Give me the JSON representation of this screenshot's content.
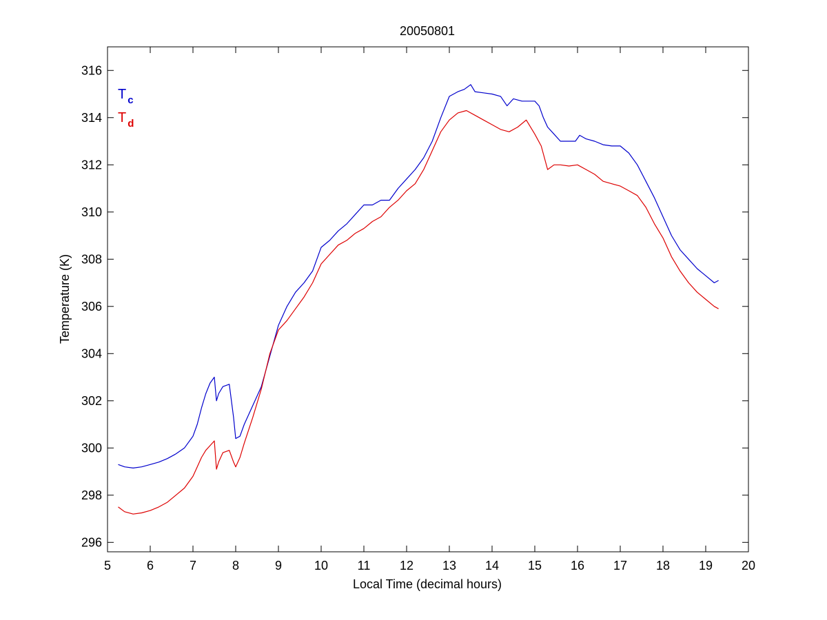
{
  "chart_data": {
    "type": "line",
    "title": "20050801",
    "xlabel": "Local Time (decimal hours)",
    "ylabel": "Temperature (K)",
    "xlim": [
      5,
      20
    ],
    "ylim": [
      295.6,
      317
    ],
    "xticks": [
      5,
      6,
      7,
      8,
      9,
      10,
      11,
      12,
      13,
      14,
      15,
      16,
      17,
      18,
      19,
      20
    ],
    "yticks": [
      296,
      298,
      300,
      302,
      304,
      306,
      308,
      310,
      312,
      314,
      316
    ],
    "grid": false,
    "legend_position": "top-left",
    "series": [
      {
        "name": "Tc",
        "label_main": "T",
        "label_sub": "c",
        "color": "#0000cc",
        "points": [
          [
            5.25,
            299.3
          ],
          [
            5.4,
            299.2
          ],
          [
            5.6,
            299.15
          ],
          [
            5.8,
            299.2
          ],
          [
            6.0,
            299.3
          ],
          [
            6.2,
            299.4
          ],
          [
            6.4,
            299.55
          ],
          [
            6.6,
            299.75
          ],
          [
            6.8,
            300.0
          ],
          [
            7.0,
            300.5
          ],
          [
            7.1,
            301.0
          ],
          [
            7.2,
            301.7
          ],
          [
            7.3,
            302.3
          ],
          [
            7.4,
            302.75
          ],
          [
            7.5,
            303.0
          ],
          [
            7.55,
            302.0
          ],
          [
            7.6,
            302.3
          ],
          [
            7.7,
            302.6
          ],
          [
            7.85,
            302.7
          ],
          [
            7.95,
            301.3
          ],
          [
            8.0,
            300.4
          ],
          [
            8.1,
            300.5
          ],
          [
            8.2,
            301.0
          ],
          [
            8.4,
            301.8
          ],
          [
            8.6,
            302.6
          ],
          [
            8.8,
            303.9
          ],
          [
            9.0,
            305.2
          ],
          [
            9.2,
            306.0
          ],
          [
            9.4,
            306.6
          ],
          [
            9.6,
            307.0
          ],
          [
            9.8,
            307.5
          ],
          [
            10.0,
            308.5
          ],
          [
            10.2,
            308.8
          ],
          [
            10.4,
            309.2
          ],
          [
            10.6,
            309.5
          ],
          [
            10.8,
            309.9
          ],
          [
            11.0,
            310.3
          ],
          [
            11.2,
            310.3
          ],
          [
            11.4,
            310.5
          ],
          [
            11.6,
            310.5
          ],
          [
            11.8,
            311.0
          ],
          [
            12.0,
            311.4
          ],
          [
            12.2,
            311.8
          ],
          [
            12.4,
            312.3
          ],
          [
            12.6,
            313.0
          ],
          [
            12.8,
            314.0
          ],
          [
            13.0,
            314.9
          ],
          [
            13.2,
            315.1
          ],
          [
            13.35,
            315.2
          ],
          [
            13.5,
            315.4
          ],
          [
            13.6,
            315.1
          ],
          [
            13.8,
            315.05
          ],
          [
            14.0,
            315.0
          ],
          [
            14.2,
            314.9
          ],
          [
            14.35,
            314.5
          ],
          [
            14.5,
            314.8
          ],
          [
            14.7,
            314.7
          ],
          [
            14.9,
            314.7
          ],
          [
            15.0,
            314.7
          ],
          [
            15.1,
            314.5
          ],
          [
            15.2,
            314.0
          ],
          [
            15.3,
            313.6
          ],
          [
            15.45,
            313.3
          ],
          [
            15.6,
            313.0
          ],
          [
            15.8,
            313.0
          ],
          [
            15.95,
            313.0
          ],
          [
            16.05,
            313.25
          ],
          [
            16.2,
            313.1
          ],
          [
            16.4,
            313.0
          ],
          [
            16.6,
            312.85
          ],
          [
            16.8,
            312.8
          ],
          [
            17.0,
            312.8
          ],
          [
            17.2,
            312.5
          ],
          [
            17.4,
            312.0
          ],
          [
            17.6,
            311.3
          ],
          [
            17.8,
            310.6
          ],
          [
            18.0,
            309.8
          ],
          [
            18.2,
            309.0
          ],
          [
            18.4,
            308.4
          ],
          [
            18.6,
            308.0
          ],
          [
            18.8,
            307.6
          ],
          [
            19.0,
            307.3
          ],
          [
            19.2,
            307.0
          ],
          [
            19.3,
            307.1
          ]
        ]
      },
      {
        "name": "Td",
        "label_main": "T",
        "label_sub": "d",
        "color": "#dd0000",
        "points": [
          [
            5.25,
            297.5
          ],
          [
            5.4,
            297.3
          ],
          [
            5.6,
            297.2
          ],
          [
            5.8,
            297.25
          ],
          [
            6.0,
            297.35
          ],
          [
            6.2,
            297.5
          ],
          [
            6.4,
            297.7
          ],
          [
            6.6,
            298.0
          ],
          [
            6.8,
            298.3
          ],
          [
            7.0,
            298.8
          ],
          [
            7.1,
            299.2
          ],
          [
            7.2,
            299.6
          ],
          [
            7.3,
            299.9
          ],
          [
            7.4,
            300.1
          ],
          [
            7.5,
            300.3
          ],
          [
            7.55,
            299.1
          ],
          [
            7.6,
            299.4
          ],
          [
            7.7,
            299.8
          ],
          [
            7.85,
            299.9
          ],
          [
            7.95,
            299.4
          ],
          [
            8.0,
            299.2
          ],
          [
            8.1,
            299.6
          ],
          [
            8.2,
            300.2
          ],
          [
            8.4,
            301.3
          ],
          [
            8.6,
            302.5
          ],
          [
            8.8,
            304.0
          ],
          [
            9.0,
            305.0
          ],
          [
            9.2,
            305.4
          ],
          [
            9.4,
            305.9
          ],
          [
            9.6,
            306.4
          ],
          [
            9.8,
            307.0
          ],
          [
            10.0,
            307.8
          ],
          [
            10.2,
            308.2
          ],
          [
            10.4,
            308.6
          ],
          [
            10.6,
            308.8
          ],
          [
            10.8,
            309.1
          ],
          [
            11.0,
            309.3
          ],
          [
            11.2,
            309.6
          ],
          [
            11.4,
            309.8
          ],
          [
            11.6,
            310.2
          ],
          [
            11.8,
            310.5
          ],
          [
            12.0,
            310.9
          ],
          [
            12.2,
            311.2
          ],
          [
            12.4,
            311.8
          ],
          [
            12.6,
            312.6
          ],
          [
            12.8,
            313.4
          ],
          [
            13.0,
            313.9
          ],
          [
            13.2,
            314.2
          ],
          [
            13.4,
            314.3
          ],
          [
            13.6,
            314.1
          ],
          [
            13.8,
            313.9
          ],
          [
            14.0,
            313.7
          ],
          [
            14.2,
            313.5
          ],
          [
            14.4,
            313.4
          ],
          [
            14.6,
            313.6
          ],
          [
            14.8,
            313.9
          ],
          [
            15.0,
            313.3
          ],
          [
            15.15,
            312.8
          ],
          [
            15.3,
            311.8
          ],
          [
            15.45,
            312.0
          ],
          [
            15.6,
            312.0
          ],
          [
            15.8,
            311.95
          ],
          [
            16.0,
            312.0
          ],
          [
            16.2,
            311.8
          ],
          [
            16.4,
            311.6
          ],
          [
            16.6,
            311.3
          ],
          [
            16.8,
            311.2
          ],
          [
            17.0,
            311.1
          ],
          [
            17.2,
            310.9
          ],
          [
            17.4,
            310.7
          ],
          [
            17.6,
            310.2
          ],
          [
            17.8,
            309.5
          ],
          [
            18.0,
            308.9
          ],
          [
            18.2,
            308.1
          ],
          [
            18.4,
            307.5
          ],
          [
            18.6,
            307.0
          ],
          [
            18.8,
            306.6
          ],
          [
            19.0,
            306.3
          ],
          [
            19.2,
            306.0
          ],
          [
            19.3,
            305.9
          ]
        ]
      }
    ]
  }
}
